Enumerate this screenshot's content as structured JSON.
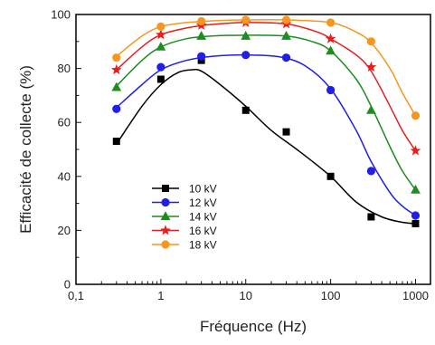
{
  "chart_data": {
    "type": "scatter",
    "title": "",
    "xlabel": "Fréquence (Hz)",
    "ylabel": "Efficacité de collecte (%)",
    "xscale": "log",
    "xlim": [
      0.1,
      1500
    ],
    "ylim": [
      0,
      100
    ],
    "xticks": [
      0.1,
      1,
      10,
      100,
      1000
    ],
    "xtick_labels": [
      "0,1",
      "1",
      "10",
      "100",
      "1000"
    ],
    "yticks": [
      0,
      20,
      40,
      60,
      80,
      100
    ],
    "ytick_labels": [
      "0",
      "20",
      "40",
      "60",
      "80",
      "100"
    ],
    "grid": false,
    "legend_position": "lower-left",
    "series": [
      {
        "name": "10 kV",
        "color": "#000000",
        "marker": "square",
        "x": [
          0.3,
          1,
          3,
          10,
          30,
          100,
          300,
          1000
        ],
        "y": [
          53,
          76,
          83,
          64.5,
          56.5,
          40,
          25,
          22.5
        ],
        "fit": [
          [
            0.3,
            52
          ],
          [
            0.6,
            66
          ],
          [
            1,
            74
          ],
          [
            1.6,
            78.5
          ],
          [
            2.3,
            79.5
          ],
          [
            3,
            79
          ],
          [
            5,
            74
          ],
          [
            10,
            66
          ],
          [
            20,
            57
          ],
          [
            40,
            50
          ],
          [
            100,
            40
          ],
          [
            200,
            30.5
          ],
          [
            400,
            25
          ],
          [
            700,
            23
          ],
          [
            1000,
            22.5
          ]
        ]
      },
      {
        "name": "12 kV",
        "color": "#1f1fe6",
        "marker": "circle",
        "x": [
          0.3,
          1,
          3,
          10,
          30,
          100,
          300,
          1000
        ],
        "y": [
          65,
          80.5,
          84.5,
          85,
          84,
          72,
          42,
          25.5
        ],
        "fit": [
          [
            0.3,
            65.5
          ],
          [
            0.6,
            74
          ],
          [
            1,
            79.5
          ],
          [
            2,
            83
          ],
          [
            4,
            84.5
          ],
          [
            10,
            85
          ],
          [
            25,
            84.3
          ],
          [
            50,
            81
          ],
          [
            100,
            72.5
          ],
          [
            200,
            57
          ],
          [
            300,
            45.5
          ],
          [
            500,
            34
          ],
          [
            700,
            29
          ],
          [
            1000,
            25.5
          ]
        ]
      },
      {
        "name": "14 kV",
        "color": "#1e8c1e",
        "marker": "triangle",
        "x": [
          0.3,
          1,
          3,
          10,
          30,
          100,
          300,
          1000
        ],
        "y": [
          73,
          88,
          92,
          92,
          92,
          86.5,
          64.5,
          35
        ],
        "fit": [
          [
            0.3,
            73.5
          ],
          [
            0.6,
            83
          ],
          [
            1,
            88
          ],
          [
            2,
            91
          ],
          [
            4,
            92
          ],
          [
            10,
            92.3
          ],
          [
            30,
            92
          ],
          [
            60,
            90
          ],
          [
            100,
            86.5
          ],
          [
            200,
            76
          ],
          [
            300,
            66
          ],
          [
            500,
            51
          ],
          [
            700,
            42
          ],
          [
            1000,
            35
          ]
        ]
      },
      {
        "name": "16 kV",
        "color": "#e61e1e",
        "marker": "star",
        "x": [
          0.3,
          1,
          3,
          10,
          30,
          100,
          300,
          1000
        ],
        "y": [
          79.5,
          92.5,
          96,
          97,
          96.5,
          91,
          80.5,
          49.5
        ],
        "fit": [
          [
            0.3,
            79.5
          ],
          [
            0.6,
            88
          ],
          [
            1,
            92.5
          ],
          [
            2,
            95
          ],
          [
            4,
            96.3
          ],
          [
            10,
            97
          ],
          [
            30,
            96.5
          ],
          [
            70,
            93.5
          ],
          [
            100,
            91
          ],
          [
            200,
            85
          ],
          [
            300,
            79
          ],
          [
            500,
            66
          ],
          [
            700,
            57
          ],
          [
            1000,
            49.5
          ]
        ]
      },
      {
        "name": "18 kV",
        "color": "#f5961e",
        "marker": "circle",
        "x": [
          0.3,
          1,
          3,
          10,
          30,
          100,
          300,
          1000
        ],
        "y": [
          84,
          95.5,
          97.5,
          98,
          98,
          97,
          90,
          62.5
        ],
        "fit": [
          [
            0.3,
            84.5
          ],
          [
            0.6,
            92
          ],
          [
            1,
            95.5
          ],
          [
            2,
            97
          ],
          [
            5,
            97.8
          ],
          [
            10,
            98
          ],
          [
            30,
            98
          ],
          [
            100,
            97
          ],
          [
            200,
            93.5
          ],
          [
            300,
            89.5
          ],
          [
            500,
            80
          ],
          [
            700,
            71
          ],
          [
            1000,
            62.5
          ]
        ]
      }
    ]
  }
}
